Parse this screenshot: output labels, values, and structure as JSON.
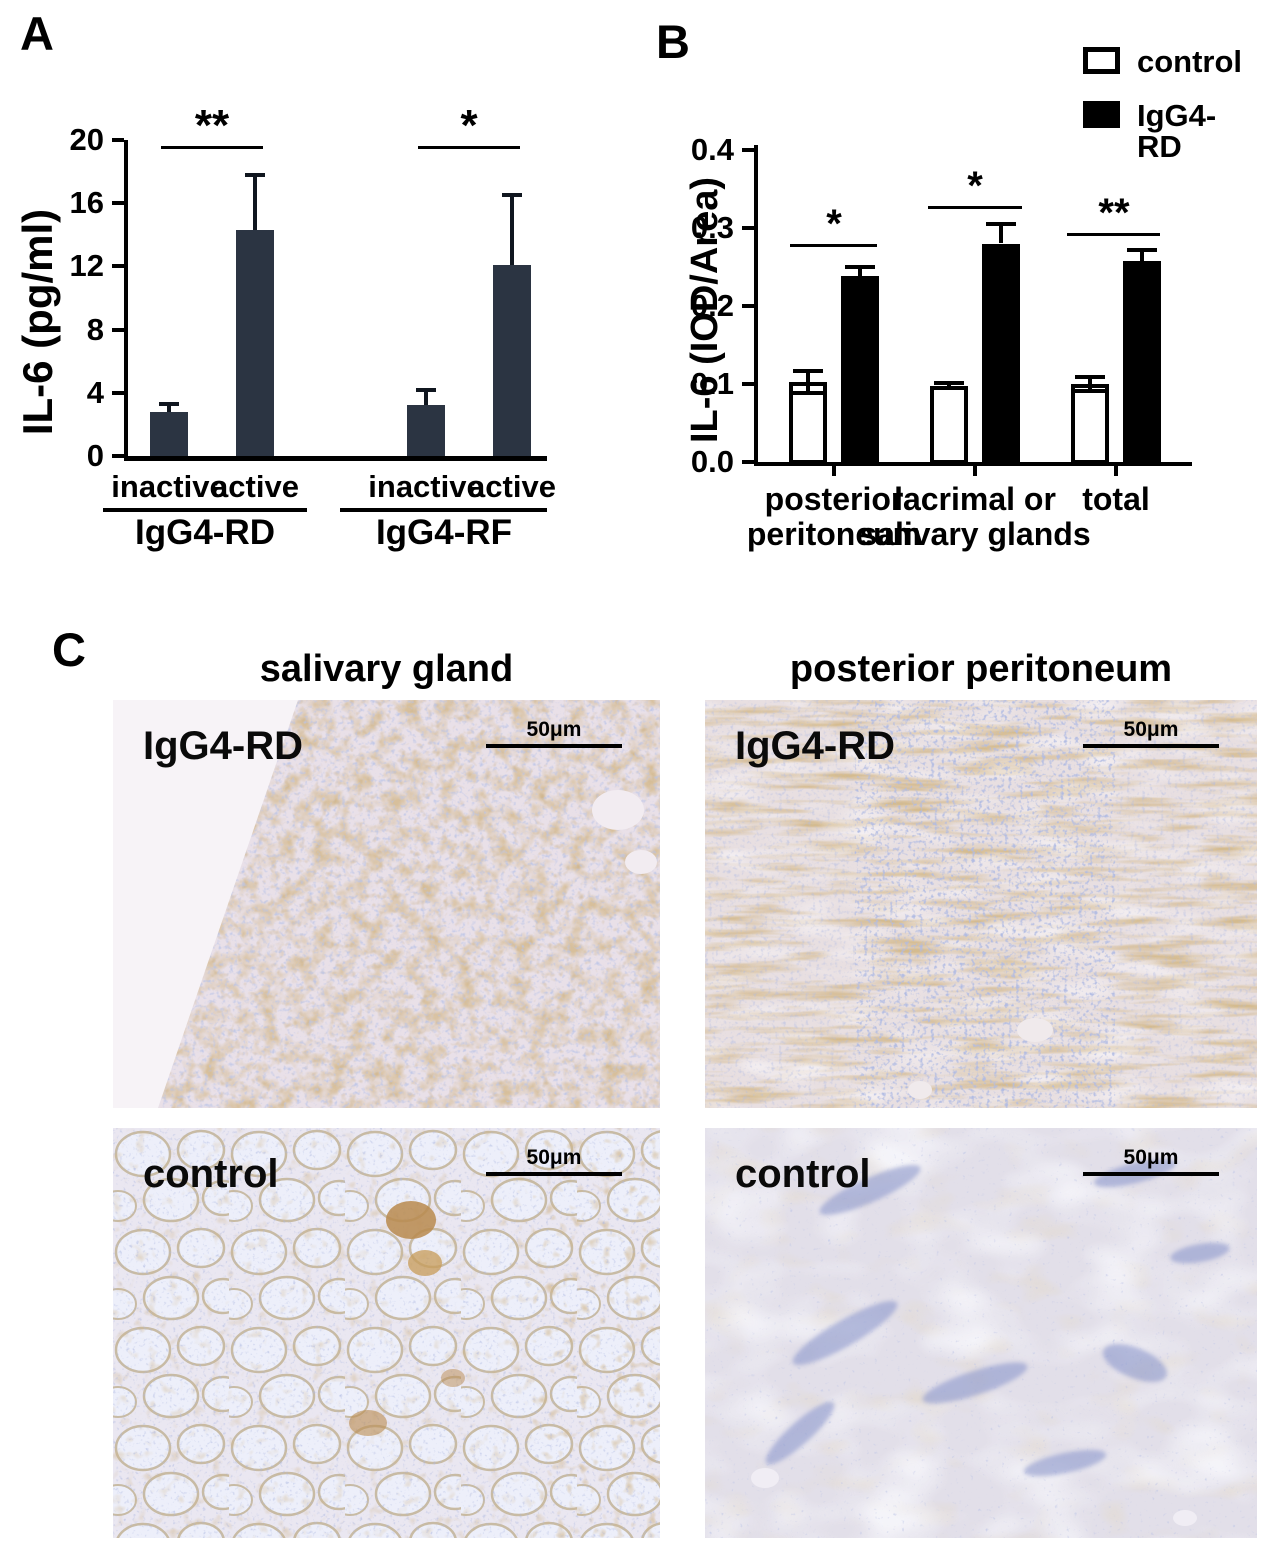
{
  "panels": {
    "a": "A",
    "b": "B",
    "c": "C"
  },
  "chart_data": [
    {
      "id": "A",
      "type": "bar",
      "title": "",
      "xlabel": "",
      "ylabel": "IL-6 (pg/ml)",
      "ylim": [
        0,
        20
      ],
      "grid": false,
      "bar_color": "#2b3442",
      "yticks": [
        {
          "value": 0,
          "label": "0"
        },
        {
          "value": 4,
          "label": "4"
        },
        {
          "value": 8,
          "label": "8"
        },
        {
          "value": 12,
          "label": "12"
        },
        {
          "value": 16,
          "label": "16"
        },
        {
          "value": 20,
          "label": "20"
        }
      ],
      "groups": [
        {
          "label": "IgG4-RD",
          "significance": "**",
          "bars": [
            {
              "label": "inactive",
              "value": 2.8,
              "error": 0.5
            },
            {
              "label": "active",
              "value": 14.3,
              "error": 3.5
            }
          ]
        },
        {
          "label": "IgG4-RF",
          "significance": "*",
          "bars": [
            {
              "label": "inactive",
              "value": 3.2,
              "error": 1.0
            },
            {
              "label": "active",
              "value": 12.1,
              "error": 4.4
            }
          ]
        }
      ]
    },
    {
      "id": "B",
      "type": "grouped-bar",
      "title": "",
      "xlabel": "",
      "ylabel": "IL-6 (IOD/Area)",
      "ylim": [
        0,
        0.4
      ],
      "grid": false,
      "legend_position": "top-right",
      "yticks": [
        {
          "value": 0.0,
          "label": "0.0"
        },
        {
          "value": 0.1,
          "label": "0.1"
        },
        {
          "value": 0.2,
          "label": "0.2"
        },
        {
          "value": 0.3,
          "label": "0.3"
        },
        {
          "value": 0.4,
          "label": "0.4"
        }
      ],
      "categories": [
        [
          "posterior",
          "peritoneum"
        ],
        [
          "lacrimal or",
          "salivary glands"
        ],
        [
          "total"
        ]
      ],
      "series": [
        {
          "name": "control",
          "fill": "#ffffff",
          "values": [
            0.103,
            0.098,
            0.1
          ],
          "errors": [
            0.014,
            0.003,
            0.009
          ]
        },
        {
          "name": "IgG4-RD",
          "fill": "#000000",
          "values": [
            0.238,
            0.28,
            0.258
          ],
          "errors": [
            0.012,
            0.025,
            0.014
          ]
        }
      ],
      "significance": [
        "*",
        "*",
        "**"
      ]
    }
  ],
  "panel_c": {
    "column_titles": [
      "salivary gland",
      "posterior peritoneum"
    ],
    "images": [
      {
        "row_label": "IgG4-RD",
        "column": "salivary gland",
        "scale_label": "50μm"
      },
      {
        "row_label": "IgG4-RD",
        "column": "posterior peritoneum",
        "scale_label": "50μm"
      },
      {
        "row_label": "control",
        "column": "salivary gland",
        "scale_label": "50μm"
      },
      {
        "row_label": "control",
        "column": "posterior peritoneum",
        "scale_label": "50μm"
      }
    ]
  }
}
